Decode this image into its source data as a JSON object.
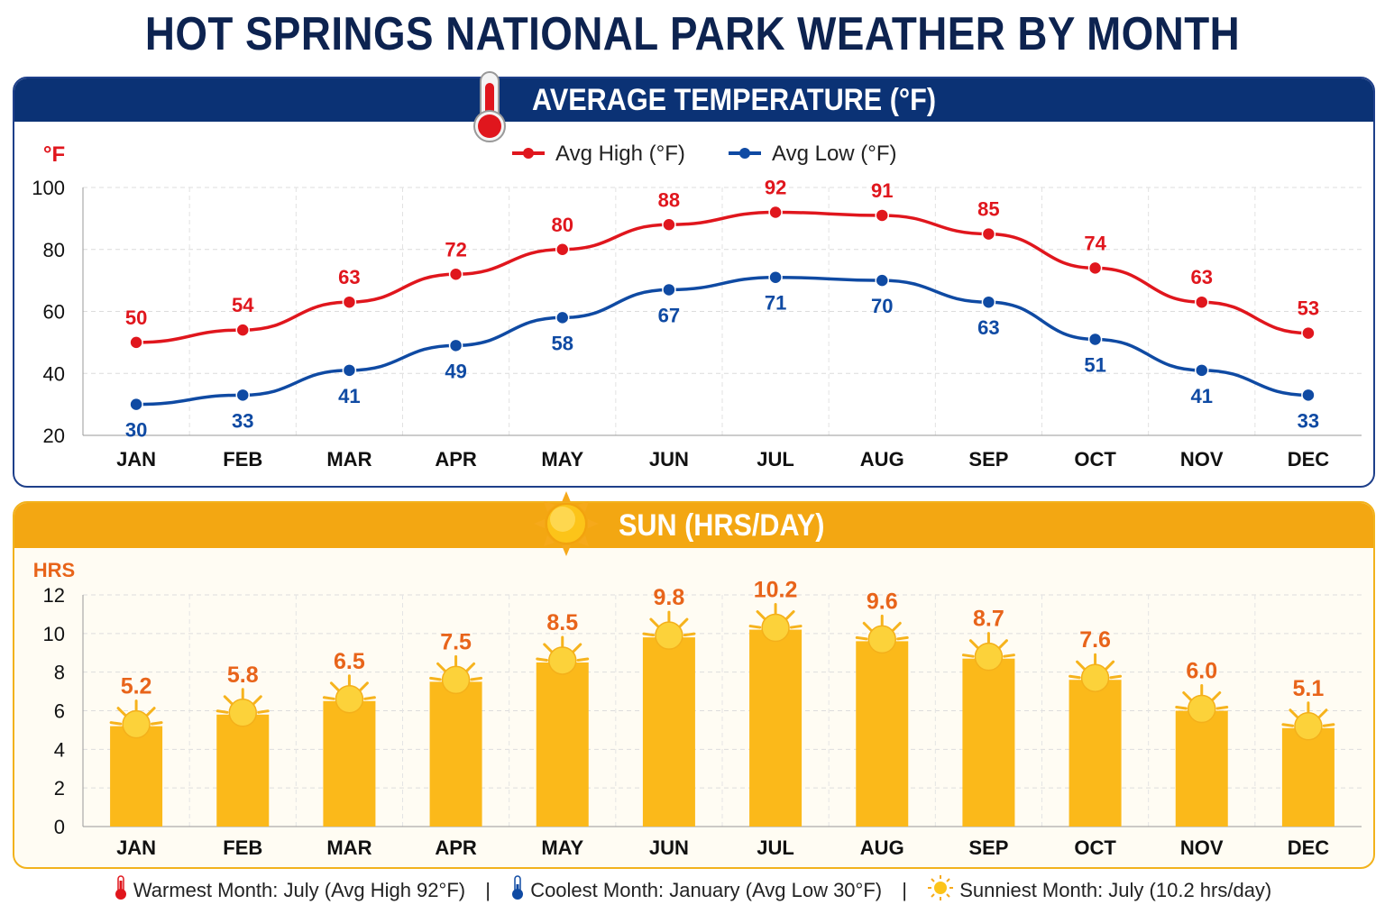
{
  "title": "HOT SPRINGS NATIONAL PARK WEATHER BY MONTH",
  "colors": {
    "high": "#e0161d",
    "low": "#0f4aa3",
    "bar": "#fbb91a",
    "sun_label": "#e8641a",
    "navy": "#0b3275"
  },
  "chart_data": [
    {
      "type": "line",
      "title": "AVERAGE TEMPERATURE (°F)",
      "ylabel": "°F",
      "xlabel": "",
      "ylim": [
        20,
        100
      ],
      "yticks": [
        20,
        40,
        60,
        80,
        100
      ],
      "grid": true,
      "legend": "top-center",
      "categories": [
        "JAN",
        "FEB",
        "MAR",
        "APR",
        "MAY",
        "JUN",
        "JUL",
        "AUG",
        "SEP",
        "OCT",
        "NOV",
        "DEC"
      ],
      "series": [
        {
          "name": "Avg High (°F)",
          "values": [
            50,
            54,
            63,
            72,
            80,
            88,
            92,
            91,
            85,
            74,
            63,
            53
          ]
        },
        {
          "name": "Avg Low (°F)",
          "values": [
            30,
            33,
            41,
            49,
            58,
            67,
            71,
            70,
            63,
            51,
            41,
            33
          ]
        }
      ]
    },
    {
      "type": "bar",
      "title": "SUN (HRS/DAY)",
      "ylabel": "HRS",
      "xlabel": "",
      "ylim": [
        0,
        12
      ],
      "yticks": [
        0,
        2,
        4,
        6,
        8,
        10,
        12
      ],
      "grid": true,
      "categories": [
        "JAN",
        "FEB",
        "MAR",
        "APR",
        "MAY",
        "JUN",
        "JUL",
        "AUG",
        "SEP",
        "OCT",
        "NOV",
        "DEC"
      ],
      "values": [
        5.2,
        5.8,
        6.5,
        7.5,
        8.5,
        9.8,
        10.2,
        9.6,
        8.7,
        7.6,
        6.0,
        5.1
      ]
    }
  ],
  "footer": {
    "warmest": "Warmest Month: July (Avg High 92°F)",
    "coolest": "Coolest Month: January (Avg Low 30°F)",
    "sunniest": "Sunniest Month: July (10.2 hrs/day)",
    "separator": "|"
  }
}
